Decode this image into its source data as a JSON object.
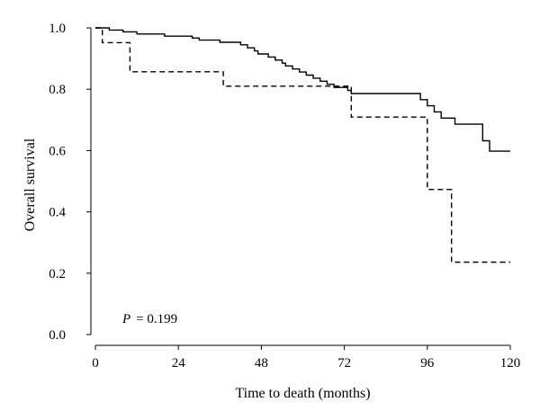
{
  "chart_data": {
    "type": "line",
    "step": true,
    "xlabel": "Time to death (months)",
    "ylabel": "Overall survival",
    "xlim": [
      0,
      120
    ],
    "ylim": [
      0,
      1
    ],
    "x_ticks": [
      "0",
      "24",
      "48",
      "72",
      "96",
      "120"
    ],
    "y_ticks": [
      "0.0",
      "0.2",
      "0.4",
      "0.6",
      "0.8",
      "1.0"
    ],
    "grid": false,
    "legend": "none",
    "annotation": {
      "label": "P",
      "text": "= 0.199"
    },
    "series": [
      {
        "style": "solid",
        "x": [
          0,
          4,
          8,
          12,
          20,
          28,
          30,
          36,
          40,
          42,
          44,
          46,
          47,
          50,
          52,
          54,
          55,
          57,
          59,
          61,
          63,
          65,
          67,
          69,
          71,
          73,
          74,
          94,
          96,
          98,
          100,
          104,
          112,
          114,
          117,
          120
        ],
        "y": [
          1.0,
          0.993,
          0.987,
          0.98,
          0.973,
          0.967,
          0.96,
          0.953,
          0.953,
          0.945,
          0.935,
          0.925,
          0.915,
          0.905,
          0.895,
          0.885,
          0.876,
          0.866,
          0.856,
          0.846,
          0.836,
          0.826,
          0.816,
          0.806,
          0.806,
          0.796,
          0.786,
          0.766,
          0.746,
          0.726,
          0.706,
          0.686,
          0.632,
          0.598,
          0.598,
          0.598
        ]
      },
      {
        "style": "dashed",
        "x": [
          0,
          2,
          10,
          37,
          72,
          74,
          96,
          103,
          120
        ],
        "y": [
          1.0,
          0.952,
          0.857,
          0.81,
          0.81,
          0.709,
          0.473,
          0.236,
          0.236
        ]
      }
    ]
  }
}
